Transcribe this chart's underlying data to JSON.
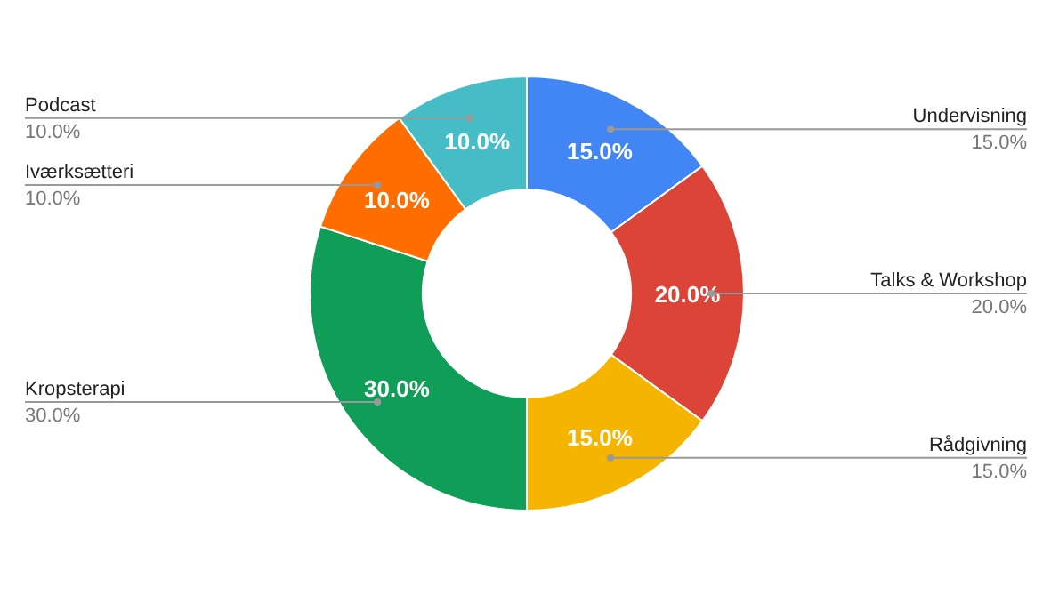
{
  "chart_data": {
    "type": "donut",
    "categories": [
      "Undervisning",
      "Talks & Workshop",
      "Rådgivning",
      "Kropsterapi",
      "Iværksætteri",
      "Podcast"
    ],
    "values": [
      15,
      20,
      15,
      30,
      10,
      10
    ],
    "colors": [
      "#4285f4",
      "#db4437",
      "#f4b400",
      "#0f9d58",
      "#ff6d01",
      "#46bdc6"
    ],
    "data_labels": true,
    "value_labels": [
      "15.0%",
      "20.0%",
      "15.0%",
      "30.0%",
      "10.0%",
      "10.0%"
    ],
    "legend": false
  }
}
